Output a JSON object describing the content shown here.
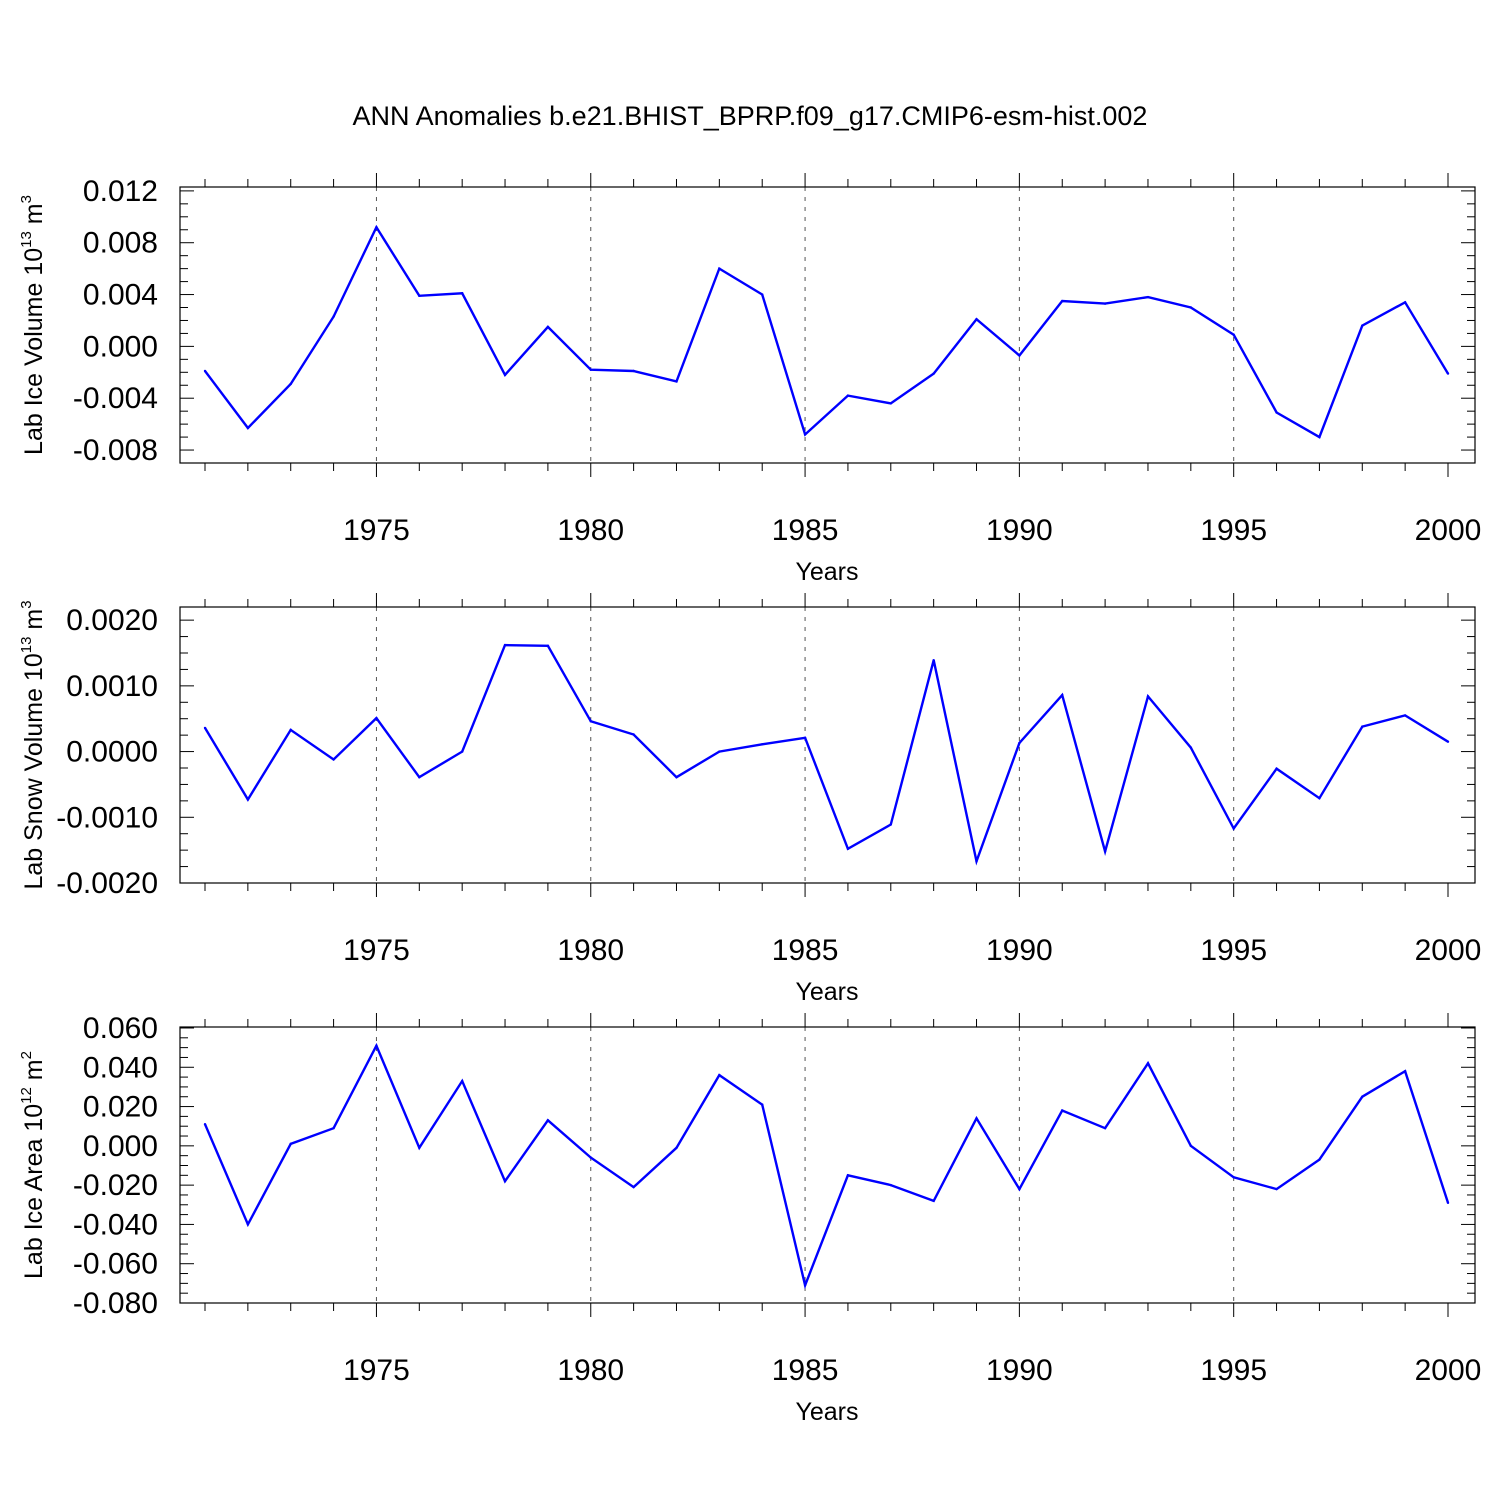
{
  "title": "ANN Anomalies b.e21.BHIST_BPRP.f09_g17.CMIP6-esm-hist.002",
  "colors": {
    "series": "#0000ff",
    "axis": "#000000",
    "gridline": "#555555",
    "background": "#ffffff"
  },
  "chart_data": [
    {
      "type": "line",
      "ylabel": {
        "prefix": "Lab Ice Volume 10",
        "exp": "13",
        "unit": " m",
        "unit_exp": "3"
      },
      "xlabel": "Years",
      "xlim": [
        1971,
        2000
      ],
      "ylim": [
        -0.009,
        0.0123
      ],
      "xticks": [
        "1975",
        "1980",
        "1985",
        "1990",
        "1995",
        "2000"
      ],
      "yticks": [
        {
          "v": 0.012,
          "label": "0.012"
        },
        {
          "v": 0.008,
          "label": "0.008"
        },
        {
          "v": 0.004,
          "label": "0.004"
        },
        {
          "v": 0.0,
          "label": "0.000"
        },
        {
          "v": -0.004,
          "label": "-0.004"
        },
        {
          "v": -0.008,
          "label": "-0.008"
        }
      ],
      "grid": "vertical dashed at labeled years",
      "x": [
        1971,
        1972,
        1973,
        1974,
        1975,
        1976,
        1977,
        1978,
        1979,
        1980,
        1981,
        1982,
        1983,
        1984,
        1985,
        1986,
        1987,
        1988,
        1989,
        1990,
        1991,
        1992,
        1993,
        1994,
        1995,
        1996,
        1997,
        1998,
        1999,
        2000
      ],
      "values": [
        -0.0019,
        -0.0063,
        -0.0029,
        0.0023,
        0.0092,
        0.0039,
        0.0041,
        -0.0022,
        0.0015,
        -0.0018,
        -0.0019,
        -0.0027,
        0.006,
        0.004,
        -0.0068,
        -0.0038,
        -0.0044,
        -0.0021,
        0.0021,
        -0.0007,
        0.0035,
        0.0033,
        0.0038,
        0.003,
        0.0009,
        -0.0051,
        -0.007,
        0.0016,
        0.0034,
        -0.0021
      ]
    },
    {
      "type": "line",
      "ylabel": {
        "prefix": "Lab Snow Volume 10",
        "exp": "13",
        "unit": " m",
        "unit_exp": "3"
      },
      "xlabel": "Years",
      "xlim": [
        1971,
        2000
      ],
      "ylim": [
        -0.002,
        0.0022
      ],
      "xticks": [
        "1975",
        "1980",
        "1985",
        "1990",
        "1995",
        "2000"
      ],
      "yticks": [
        {
          "v": 0.002,
          "label": "0.0020"
        },
        {
          "v": 0.001,
          "label": "0.0010"
        },
        {
          "v": 0.0,
          "label": "0.0000"
        },
        {
          "v": -0.001,
          "label": "-0.0010"
        },
        {
          "v": -0.002,
          "label": "-0.0020"
        }
      ],
      "grid": "vertical dashed at labeled years",
      "x": [
        1971,
        1972,
        1973,
        1974,
        1975,
        1976,
        1977,
        1978,
        1979,
        1980,
        1981,
        1982,
        1983,
        1984,
        1985,
        1986,
        1987,
        1988,
        1989,
        1990,
        1991,
        1992,
        1993,
        1994,
        1995,
        1996,
        1997,
        1998,
        1999,
        2000
      ],
      "values": [
        0.00036,
        -0.00073,
        0.00033,
        -0.00012,
        0.00051,
        -0.00039,
        0.0,
        0.00162,
        0.00161,
        0.00046,
        0.00026,
        -0.00039,
        0.0,
        0.00011,
        0.00021,
        -0.00148,
        -0.00111,
        0.00139,
        -0.00167,
        0.00013,
        0.00086,
        -0.00152,
        0.00084,
        6e-05,
        -0.00117,
        -0.00026,
        -0.00071,
        0.00038,
        0.00055,
        0.00015
      ]
    },
    {
      "type": "line",
      "ylabel": {
        "prefix": "Lab Ice Area 10",
        "exp": "12",
        "unit": " m",
        "unit_exp": "2"
      },
      "xlabel": "Years",
      "xlim": [
        1971,
        2000
      ],
      "ylim": [
        -0.08,
        0.0605
      ],
      "xticks": [
        "1975",
        "1980",
        "1985",
        "1990",
        "1995",
        "2000"
      ],
      "yticks": [
        {
          "v": 0.06,
          "label": "0.060"
        },
        {
          "v": 0.04,
          "label": "0.040"
        },
        {
          "v": 0.02,
          "label": "0.020"
        },
        {
          "v": 0.0,
          "label": "0.000"
        },
        {
          "v": -0.02,
          "label": "-0.020"
        },
        {
          "v": -0.04,
          "label": "-0.040"
        },
        {
          "v": -0.06,
          "label": "-0.060"
        },
        {
          "v": -0.08,
          "label": "-0.080"
        }
      ],
      "grid": "vertical dashed at labeled years",
      "x": [
        1971,
        1972,
        1973,
        1974,
        1975,
        1976,
        1977,
        1978,
        1979,
        1980,
        1981,
        1982,
        1983,
        1984,
        1985,
        1986,
        1987,
        1988,
        1989,
        1990,
        1991,
        1992,
        1993,
        1994,
        1995,
        1996,
        1997,
        1998,
        1999,
        2000
      ],
      "values": [
        0.011,
        -0.04,
        0.001,
        0.009,
        0.051,
        -0.001,
        0.033,
        -0.018,
        0.013,
        -0.006,
        -0.021,
        -0.001,
        0.036,
        0.021,
        -0.071,
        -0.015,
        -0.02,
        -0.028,
        0.014,
        -0.022,
        0.018,
        0.009,
        0.042,
        0.0,
        -0.016,
        -0.022,
        -0.007,
        0.025,
        0.038,
        -0.029
      ]
    }
  ]
}
